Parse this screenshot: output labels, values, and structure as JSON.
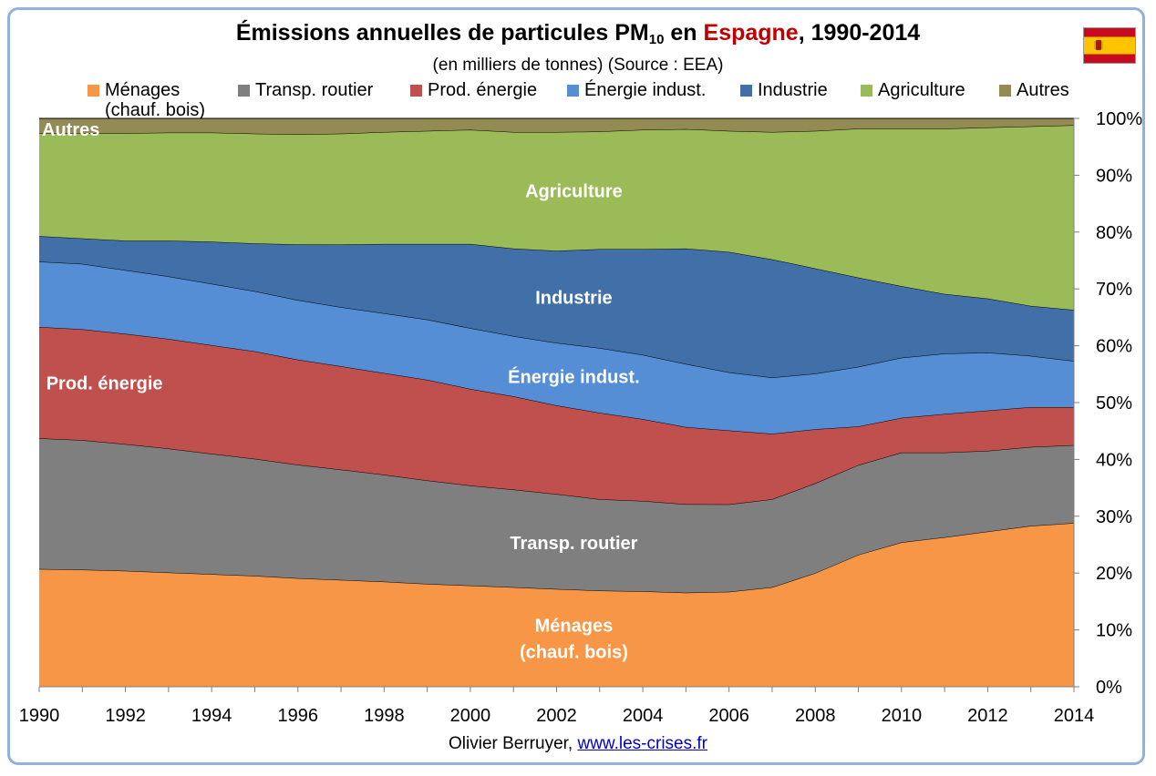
{
  "header": {
    "title_pre": "Émissions annuelles de particules PM",
    "title_sub": "10",
    "title_mid": " en ",
    "title_highlight": "Espagne",
    "title_post": ", 1990-2014",
    "subtitle": "(en milliers de tonnes) (Source : EEA)"
  },
  "flag": {
    "icon": "spain-flag-icon",
    "colors": {
      "red": "#c60b1e",
      "yellow": "#ffc400"
    }
  },
  "legend": {
    "items": [
      {
        "label": "Ménages",
        "label2": "(chauf. bois)",
        "color": "#f79646"
      },
      {
        "label": "Transp. routier",
        "color": "#7f7f7f"
      },
      {
        "label": "Prod. énergie",
        "color": "#c0504d"
      },
      {
        "label": "Énergie indust.",
        "color": "#558ed5"
      },
      {
        "label": "Industrie",
        "color": "#4170a8"
      },
      {
        "label": "Agriculture",
        "color": "#9bbb59"
      },
      {
        "label": "Autres",
        "color": "#948a54"
      }
    ]
  },
  "credit": {
    "author": "Olivier Berruyer,",
    "link": "www.les-crises.fr"
  },
  "chart_data": {
    "type": "area",
    "stacked": true,
    "percent": true,
    "x": [
      1990,
      1991,
      1992,
      1993,
      1994,
      1995,
      1996,
      1997,
      1998,
      1999,
      2000,
      2001,
      2002,
      2003,
      2004,
      2005,
      2006,
      2007,
      2008,
      2009,
      2010,
      2011,
      2012,
      2013,
      2014
    ],
    "x_ticks": [
      "1990",
      "1992",
      "1994",
      "1996",
      "1998",
      "2000",
      "2002",
      "2004",
      "2006",
      "2008",
      "2010",
      "2012",
      "2014"
    ],
    "y_ticks": [
      "0%",
      "10%",
      "20%",
      "30%",
      "40%",
      "50%",
      "60%",
      "70%",
      "80%",
      "90%",
      "100%"
    ],
    "ylim": [
      0,
      100
    ],
    "grid": false,
    "legend_position": "top",
    "series": [
      {
        "name": "Ménages (chauf. bois)",
        "color": "#f79646",
        "values": [
          20.7,
          20.6,
          20.4,
          20.1,
          19.8,
          19.5,
          19.1,
          18.8,
          18.5,
          18.1,
          17.8,
          17.5,
          17.2,
          16.9,
          16.8,
          16.7,
          16.7,
          17.5,
          20.0,
          23.2,
          25.4,
          26.3,
          27.3,
          28.3,
          28.8
        ]
      },
      {
        "name": "Transp. routier",
        "color": "#7f7f7f",
        "values": [
          23.0,
          22.8,
          22.3,
          21.8,
          21.2,
          20.6,
          20.0,
          19.4,
          18.8,
          18.2,
          17.6,
          17.2,
          16.7,
          16.1,
          15.9,
          15.7,
          15.4,
          15.5,
          15.8,
          15.8,
          15.8,
          14.9,
          14.2,
          13.9,
          13.7
        ]
      },
      {
        "name": "Prod. énergie",
        "color": "#c0504d",
        "values": [
          19.6,
          19.5,
          19.4,
          19.3,
          19.1,
          18.9,
          18.5,
          18.2,
          17.9,
          17.7,
          17.0,
          16.4,
          15.6,
          15.2,
          14.4,
          13.7,
          13.0,
          11.5,
          9.5,
          6.8,
          6.1,
          6.8,
          7.1,
          7.0,
          6.7
        ]
      },
      {
        "name": "Énergie indust.",
        "color": "#558ed5",
        "values": [
          11.5,
          11.5,
          11.2,
          11.0,
          10.8,
          10.6,
          10.5,
          10.4,
          10.5,
          10.6,
          10.7,
          10.6,
          11.0,
          11.4,
          11.3,
          11.2,
          10.2,
          9.9,
          9.8,
          10.5,
          10.6,
          10.6,
          10.2,
          9.0,
          8.1
        ]
      },
      {
        "name": "Industrie",
        "color": "#4170a8",
        "values": [
          4.5,
          4.5,
          5.2,
          6.3,
          7.4,
          8.4,
          9.8,
          11.0,
          12.2,
          13.3,
          14.8,
          15.4,
          16.2,
          17.4,
          18.6,
          20.5,
          21.2,
          20.8,
          18.5,
          15.7,
          12.6,
          10.5,
          9.5,
          8.8,
          9.0
        ]
      },
      {
        "name": "Agriculture",
        "color": "#9bbb59",
        "values": [
          18.1,
          18.5,
          18.9,
          19.0,
          19.2,
          19.3,
          19.4,
          19.5,
          19.7,
          19.9,
          20.1,
          20.5,
          20.9,
          20.7,
          21.0,
          21.2,
          21.3,
          22.4,
          24.2,
          26.2,
          27.7,
          29.1,
          30.1,
          31.6,
          32.5
        ]
      },
      {
        "name": "Autres",
        "color": "#948a54",
        "values": [
          2.6,
          2.6,
          2.6,
          2.5,
          2.5,
          2.7,
          2.8,
          2.7,
          2.4,
          2.2,
          2.0,
          2.4,
          2.4,
          2.3,
          2.0,
          1.9,
          2.2,
          2.4,
          2.2,
          1.8,
          1.8,
          1.8,
          1.6,
          1.4,
          1.2
        ]
      }
    ],
    "annotations": [
      {
        "text": "Autres",
        "series": "Autres"
      },
      {
        "text": "Agriculture",
        "series": "Agriculture"
      },
      {
        "text": "Industrie",
        "series": "Industrie"
      },
      {
        "text": "Énergie indust.",
        "series": "Énergie indust."
      },
      {
        "text": "Prod. énergie",
        "series": "Prod. énergie"
      },
      {
        "text": "Transp. routier",
        "series": "Transp. routier"
      },
      {
        "text": "Ménages",
        "text2": "(chauf. bois)",
        "series": "Ménages (chauf. bois)"
      }
    ]
  }
}
